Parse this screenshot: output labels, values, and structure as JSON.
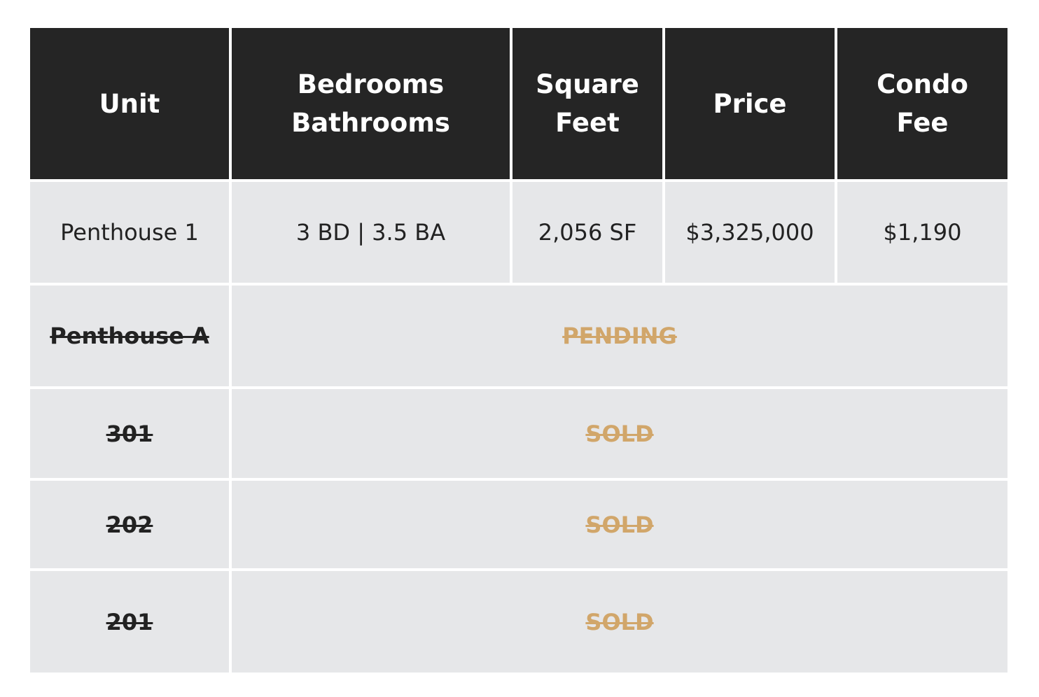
{
  "headers": {
    "unit": "Unit",
    "bed_bath": "Bedrooms\nBathrooms",
    "sqft": "Square\nFeet",
    "price": "Price",
    "condo_fee": "Condo\nFee"
  },
  "rows": [
    {
      "unit": "Penthouse 1",
      "bed_bath": "3 BD | 3.5 BA",
      "sqft": "2,056 SF",
      "price": "$3,325,000",
      "condo_fee": "$1,190"
    },
    {
      "unit": "Penthouse A",
      "status": "PENDING"
    },
    {
      "unit": "301",
      "status": "SOLD"
    },
    {
      "unit": "202",
      "status": "SOLD"
    },
    {
      "unit": "201",
      "status": "SOLD"
    }
  ],
  "colors": {
    "header_bg": "#252525",
    "header_text": "#ffffff",
    "cell_bg": "#e6e7e9",
    "cell_text": "#222222",
    "status_text": "#d1a66a"
  }
}
